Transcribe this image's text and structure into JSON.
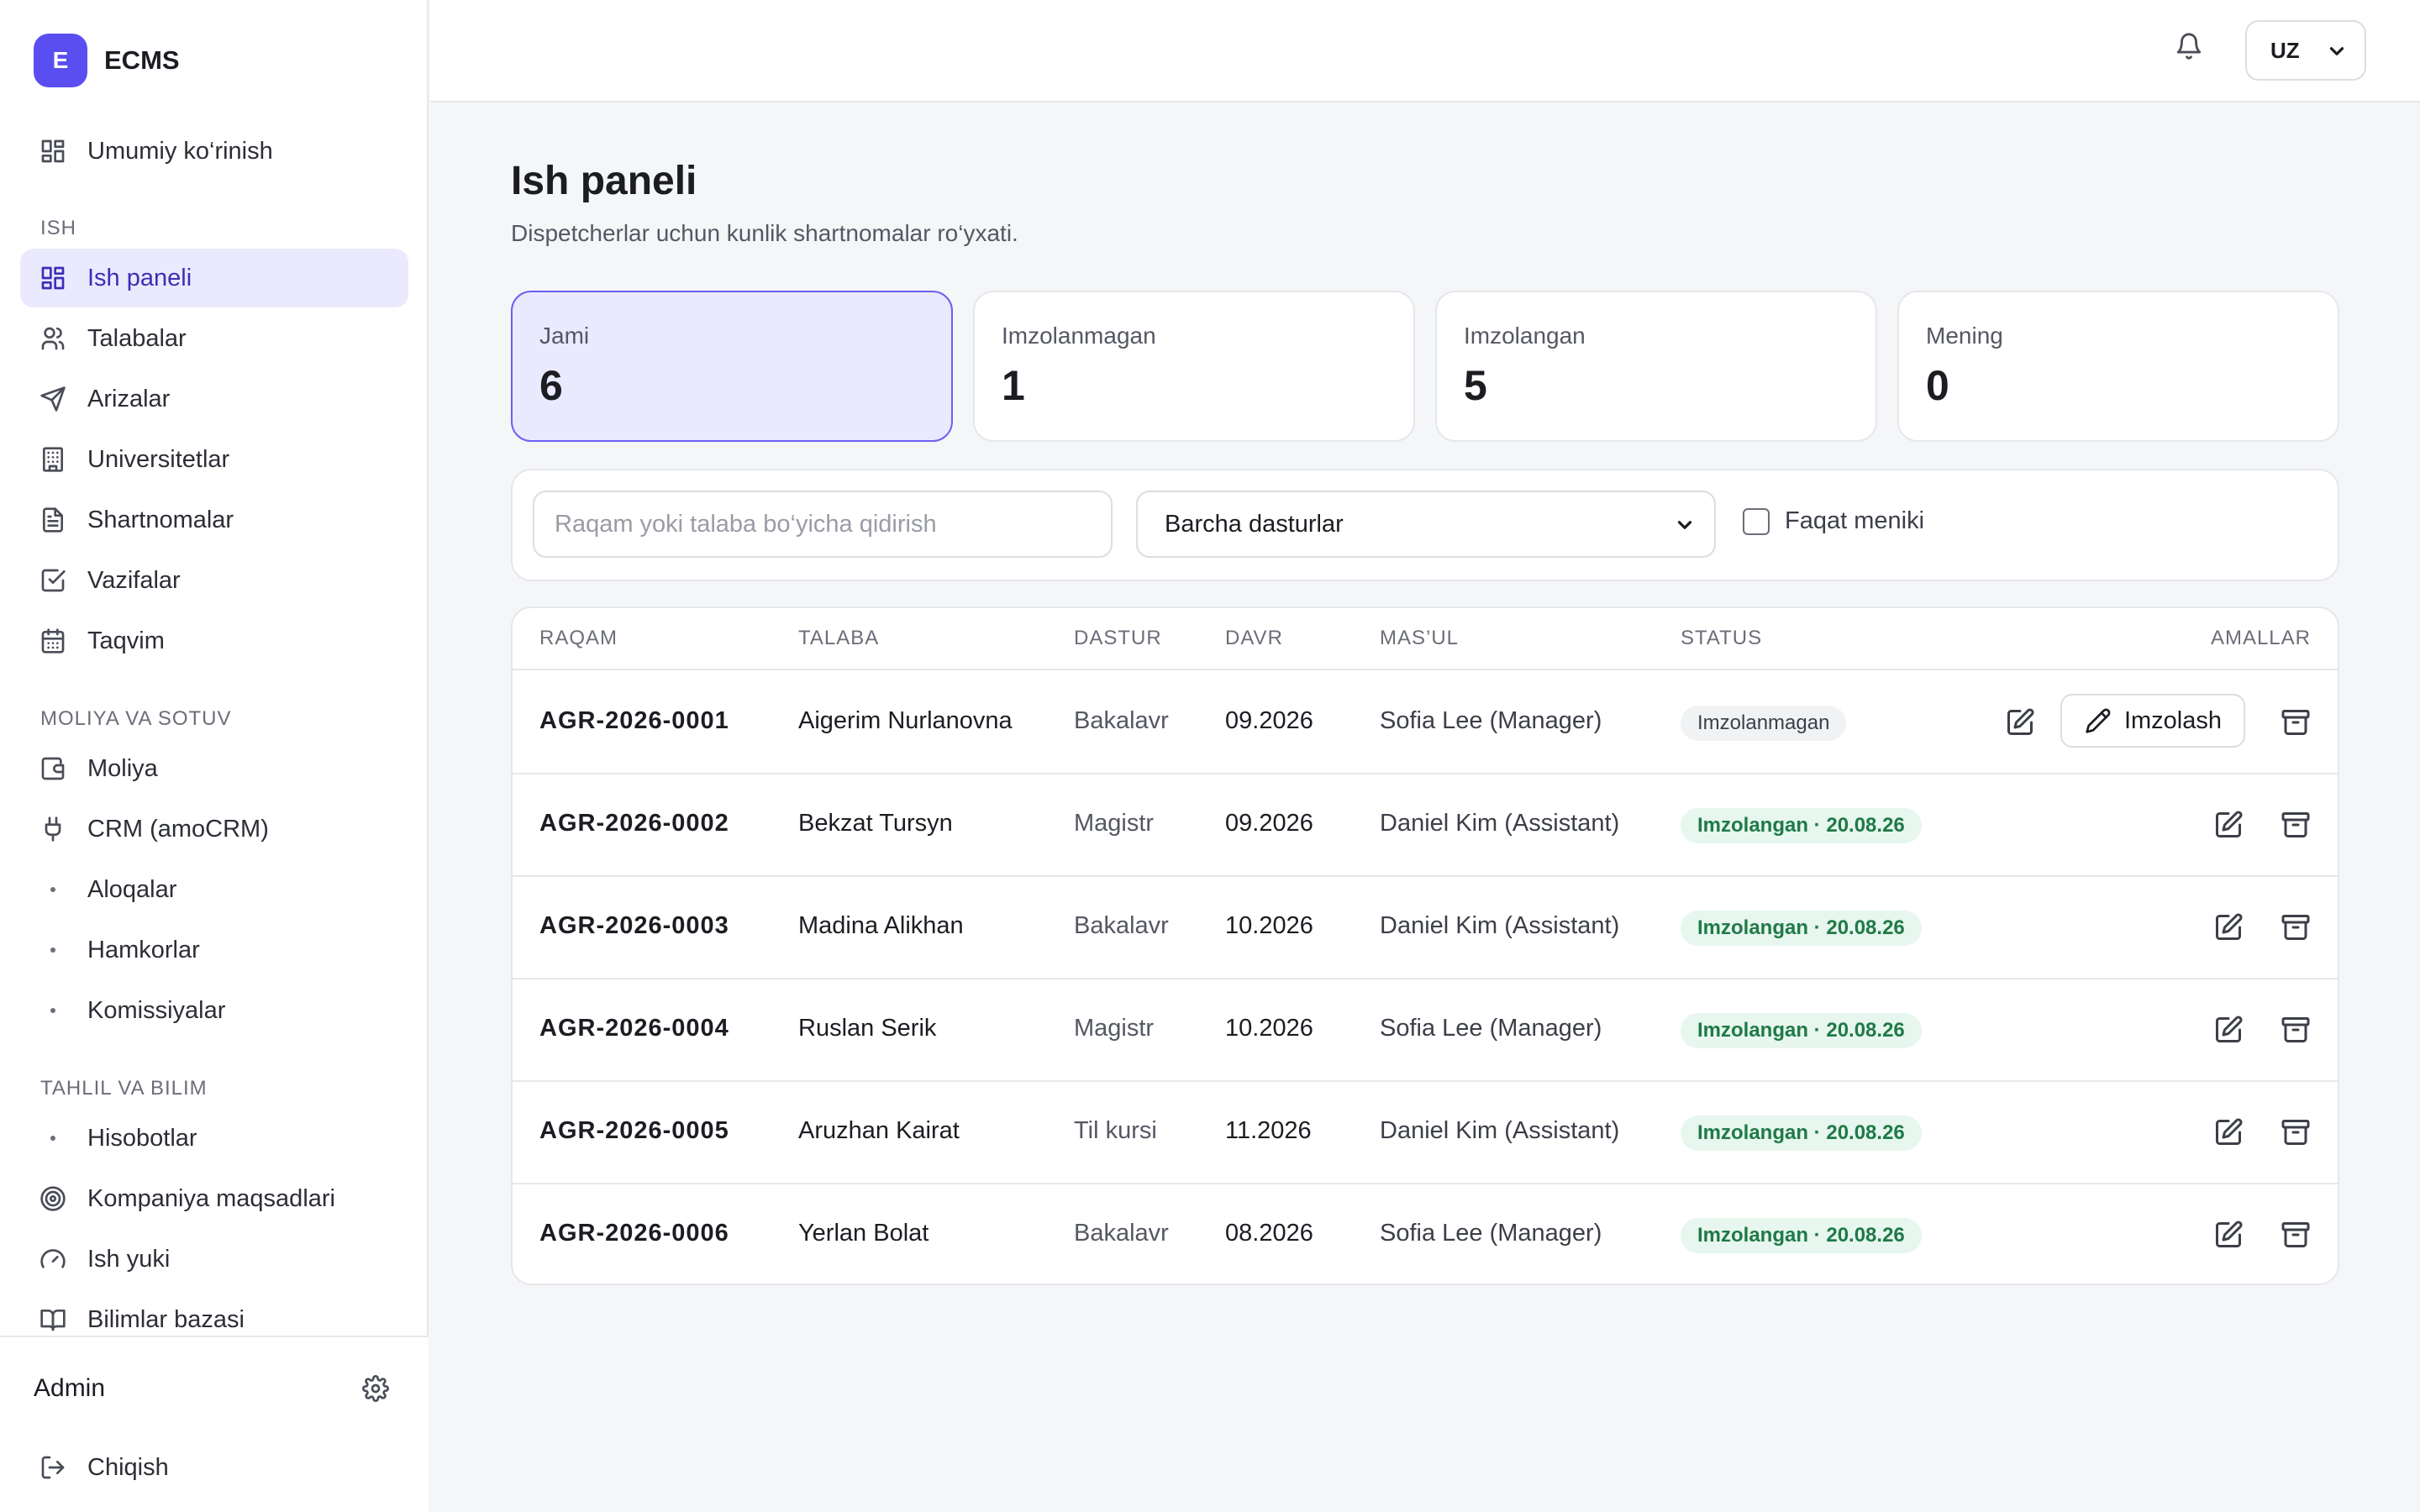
{
  "brand": {
    "badge": "E",
    "name": "ECMS"
  },
  "sidebar": {
    "overview": {
      "label": "Umumiy ko‘rinish",
      "icon": "grid-icon"
    },
    "sections": [
      {
        "title": "ISH"
      },
      {
        "title": "MOLIYA VA SOTUV"
      },
      {
        "title": "TAHLIL VA BILIM"
      }
    ],
    "items": [
      {
        "label": "Ish paneli",
        "icon": "grid-icon",
        "active": true
      },
      {
        "label": "Talabalar",
        "icon": "users-icon"
      },
      {
        "label": "Arizalar",
        "icon": "send-icon"
      },
      {
        "label": "Universitetlar",
        "icon": "building-icon"
      },
      {
        "label": "Shartnomalar",
        "icon": "document-icon"
      },
      {
        "label": "Vazifalar",
        "icon": "check-square-icon"
      },
      {
        "label": "Taqvim",
        "icon": "calendar-icon"
      },
      {
        "label": "Moliya",
        "icon": "wallet-icon"
      },
      {
        "label": "CRM (amoCRM)",
        "icon": "plug-icon"
      },
      {
        "label": "Aloqalar",
        "icon": "dot-icon"
      },
      {
        "label": "Hamkorlar",
        "icon": "dot-icon"
      },
      {
        "label": "Komissiyalar",
        "icon": "dot-icon"
      },
      {
        "label": "Hisobotlar",
        "icon": "dot-icon"
      },
      {
        "label": "Kompaniya maqsadlari",
        "icon": "target-icon"
      },
      {
        "label": "Ish yuki",
        "icon": "gauge-icon"
      },
      {
        "label": "Bilimlar bazasi",
        "icon": "book-icon"
      }
    ],
    "footer": {
      "user": "Admin",
      "logout": "Chiqish"
    }
  },
  "topbar": {
    "language": "UZ"
  },
  "page": {
    "title": "Ish paneli",
    "subtitle": "Dispetcherlar uchun kunlik shartnomalar ro‘yxati."
  },
  "stats": [
    {
      "label": "Jami",
      "value": "6",
      "active": true
    },
    {
      "label": "Imzolanmagan",
      "value": "1"
    },
    {
      "label": "Imzolangan",
      "value": "5"
    },
    {
      "label": "Mening",
      "value": "0"
    }
  ],
  "filters": {
    "search_placeholder": "Raqam yoki talaba bo‘yicha qidirish",
    "program_selected": "Barcha dasturlar",
    "mine_only_label": "Faqat meniki",
    "mine_only_checked": false
  },
  "table": {
    "columns": [
      "RAQAM",
      "TALABA",
      "DASTUR",
      "DAVR",
      "MAS’UL",
      "STATUS",
      "AMALLAR"
    ],
    "sign_button": "Imzolash",
    "rows": [
      {
        "number": "AGR-2026-0001",
        "student": "Aigerim Nurlanovna",
        "program": "Bakalavr",
        "period": "09.2026",
        "owner": "Sofia Lee (Manager)",
        "status": "Imzolanmagan",
        "status_type": "unsigned"
      },
      {
        "number": "AGR-2026-0002",
        "student": "Bekzat Tursyn",
        "program": "Magistr",
        "period": "09.2026",
        "owner": "Daniel Kim (Assistant)",
        "status": "Imzolangan · 20.08.26",
        "status_type": "signed"
      },
      {
        "number": "AGR-2026-0003",
        "student": "Madina Alikhan",
        "program": "Bakalavr",
        "period": "10.2026",
        "owner": "Daniel Kim (Assistant)",
        "status": "Imzolangan · 20.08.26",
        "status_type": "signed"
      },
      {
        "number": "AGR-2026-0004",
        "student": "Ruslan Serik",
        "program": "Magistr",
        "period": "10.2026",
        "owner": "Sofia Lee (Manager)",
        "status": "Imzolangan · 20.08.26",
        "status_type": "signed"
      },
      {
        "number": "AGR-2026-0005",
        "student": "Aruzhan Kairat",
        "program": "Til kursi",
        "period": "11.2026",
        "owner": "Daniel Kim (Assistant)",
        "status": "Imzolangan · 20.08.26",
        "status_type": "signed"
      },
      {
        "number": "AGR-2026-0006",
        "student": "Yerlan Bolat",
        "program": "Bakalavr",
        "period": "08.2026",
        "owner": "Sofia Lee (Manager)",
        "status": "Imzolangan · 20.08.26",
        "status_type": "signed"
      }
    ]
  },
  "colors": {
    "accent": "#5b4ef0",
    "active_bg": "#ebe9fd",
    "signed_bg": "#e7f6ee",
    "signed_text": "#1f7a47"
  }
}
